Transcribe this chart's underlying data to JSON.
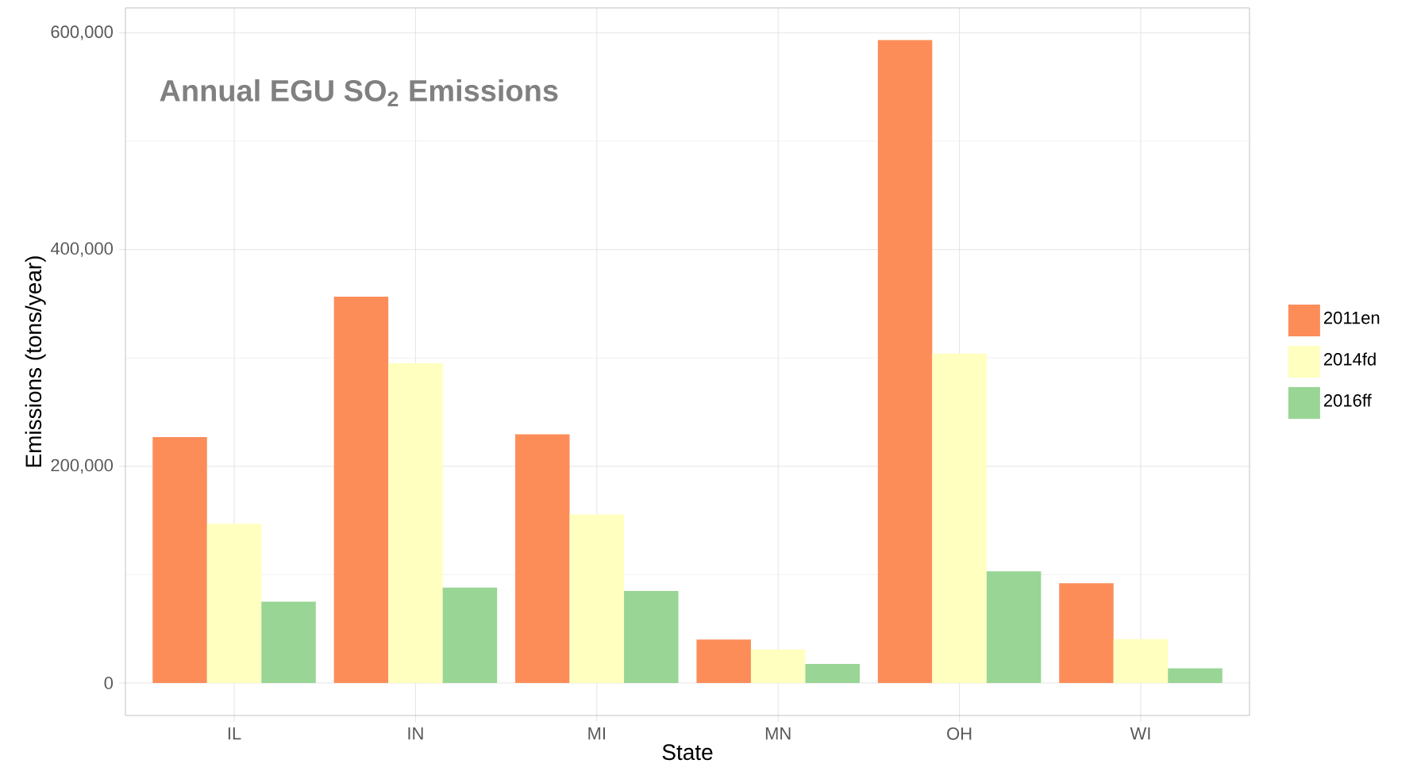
{
  "chart_data": {
    "type": "bar",
    "title": "Annual EGU SO$_{2}$ Emissions",
    "xlabel": "State",
    "ylabel": "Emissions (tons/year)",
    "categories": [
      "IL",
      "IN",
      "MI",
      "MN",
      "OH",
      "WI"
    ],
    "series": [
      {
        "name": "2011en",
        "color": "#fc8d59",
        "values": [
          227000,
          356500,
          229500,
          40000,
          593300,
          92000
        ]
      },
      {
        "name": "2014fd",
        "color": "#ffffbf",
        "values": [
          147000,
          295000,
          155500,
          31000,
          304000,
          40500
        ]
      },
      {
        "name": "2016ff",
        "color": "#99d594",
        "values": [
          75000,
          88000,
          85000,
          17500,
          103000,
          13500
        ]
      }
    ],
    "ylim": [
      -30000,
      623000
    ],
    "yticks": [
      0,
      {
        "value": 100000,
        "label": null
      },
      {
        "value": 200000,
        "label": "200,000"
      },
      {
        "value": 300000,
        "label": null
      },
      {
        "value": 400000,
        "label": "400,000"
      },
      {
        "value": 500000,
        "label": null
      },
      {
        "value": 600000,
        "label": "600,000"
      }
    ],
    "grid": true,
    "legend": "right"
  }
}
